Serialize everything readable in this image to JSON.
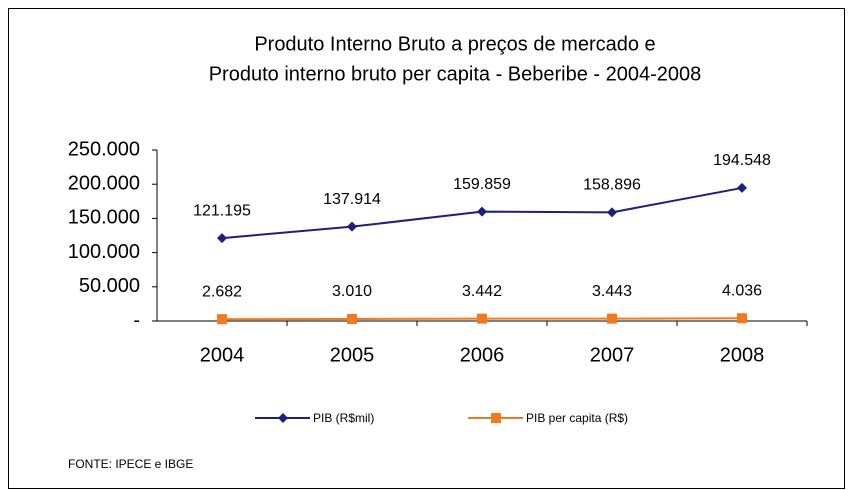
{
  "chart_data": {
    "type": "line",
    "title": "Produto Interno Bruto a preços de mercado  e",
    "subtitle": "Produto interno bruto per capita -  Beberibe - 2004-2008",
    "categories": [
      "2004",
      "2005",
      "2006",
      "2007",
      "2008"
    ],
    "series": [
      {
        "name": "PIB (R$mil)",
        "color": "#1f1f7a",
        "marker": "diamond",
        "values": [
          121195,
          137914,
          159859,
          158896,
          194548
        ],
        "value_labels": [
          "121.195",
          "137.914",
          "159.859",
          "158.896",
          "194.548"
        ]
      },
      {
        "name": "PIB per capita (R$)",
        "color": "#f07a20",
        "marker": "square",
        "values": [
          2682,
          3010,
          3442,
          3443,
          4036
        ],
        "value_labels": [
          "2.682",
          "3.010",
          "3.442",
          "3.443",
          "4.036"
        ]
      }
    ],
    "ylim": [
      0,
      250000
    ],
    "yticks": [
      {
        "value": 0,
        "label": "-"
      },
      {
        "value": 50000,
        "label": "50.000"
      },
      {
        "value": 100000,
        "label": "100.000"
      },
      {
        "value": 150000,
        "label": "150.000"
      },
      {
        "value": 200000,
        "label": "200.000"
      },
      {
        "value": 250000,
        "label": "250.000"
      }
    ],
    "grid": false,
    "legend": "bottom",
    "annotation": "FONTE: IPECE e IBGE"
  }
}
